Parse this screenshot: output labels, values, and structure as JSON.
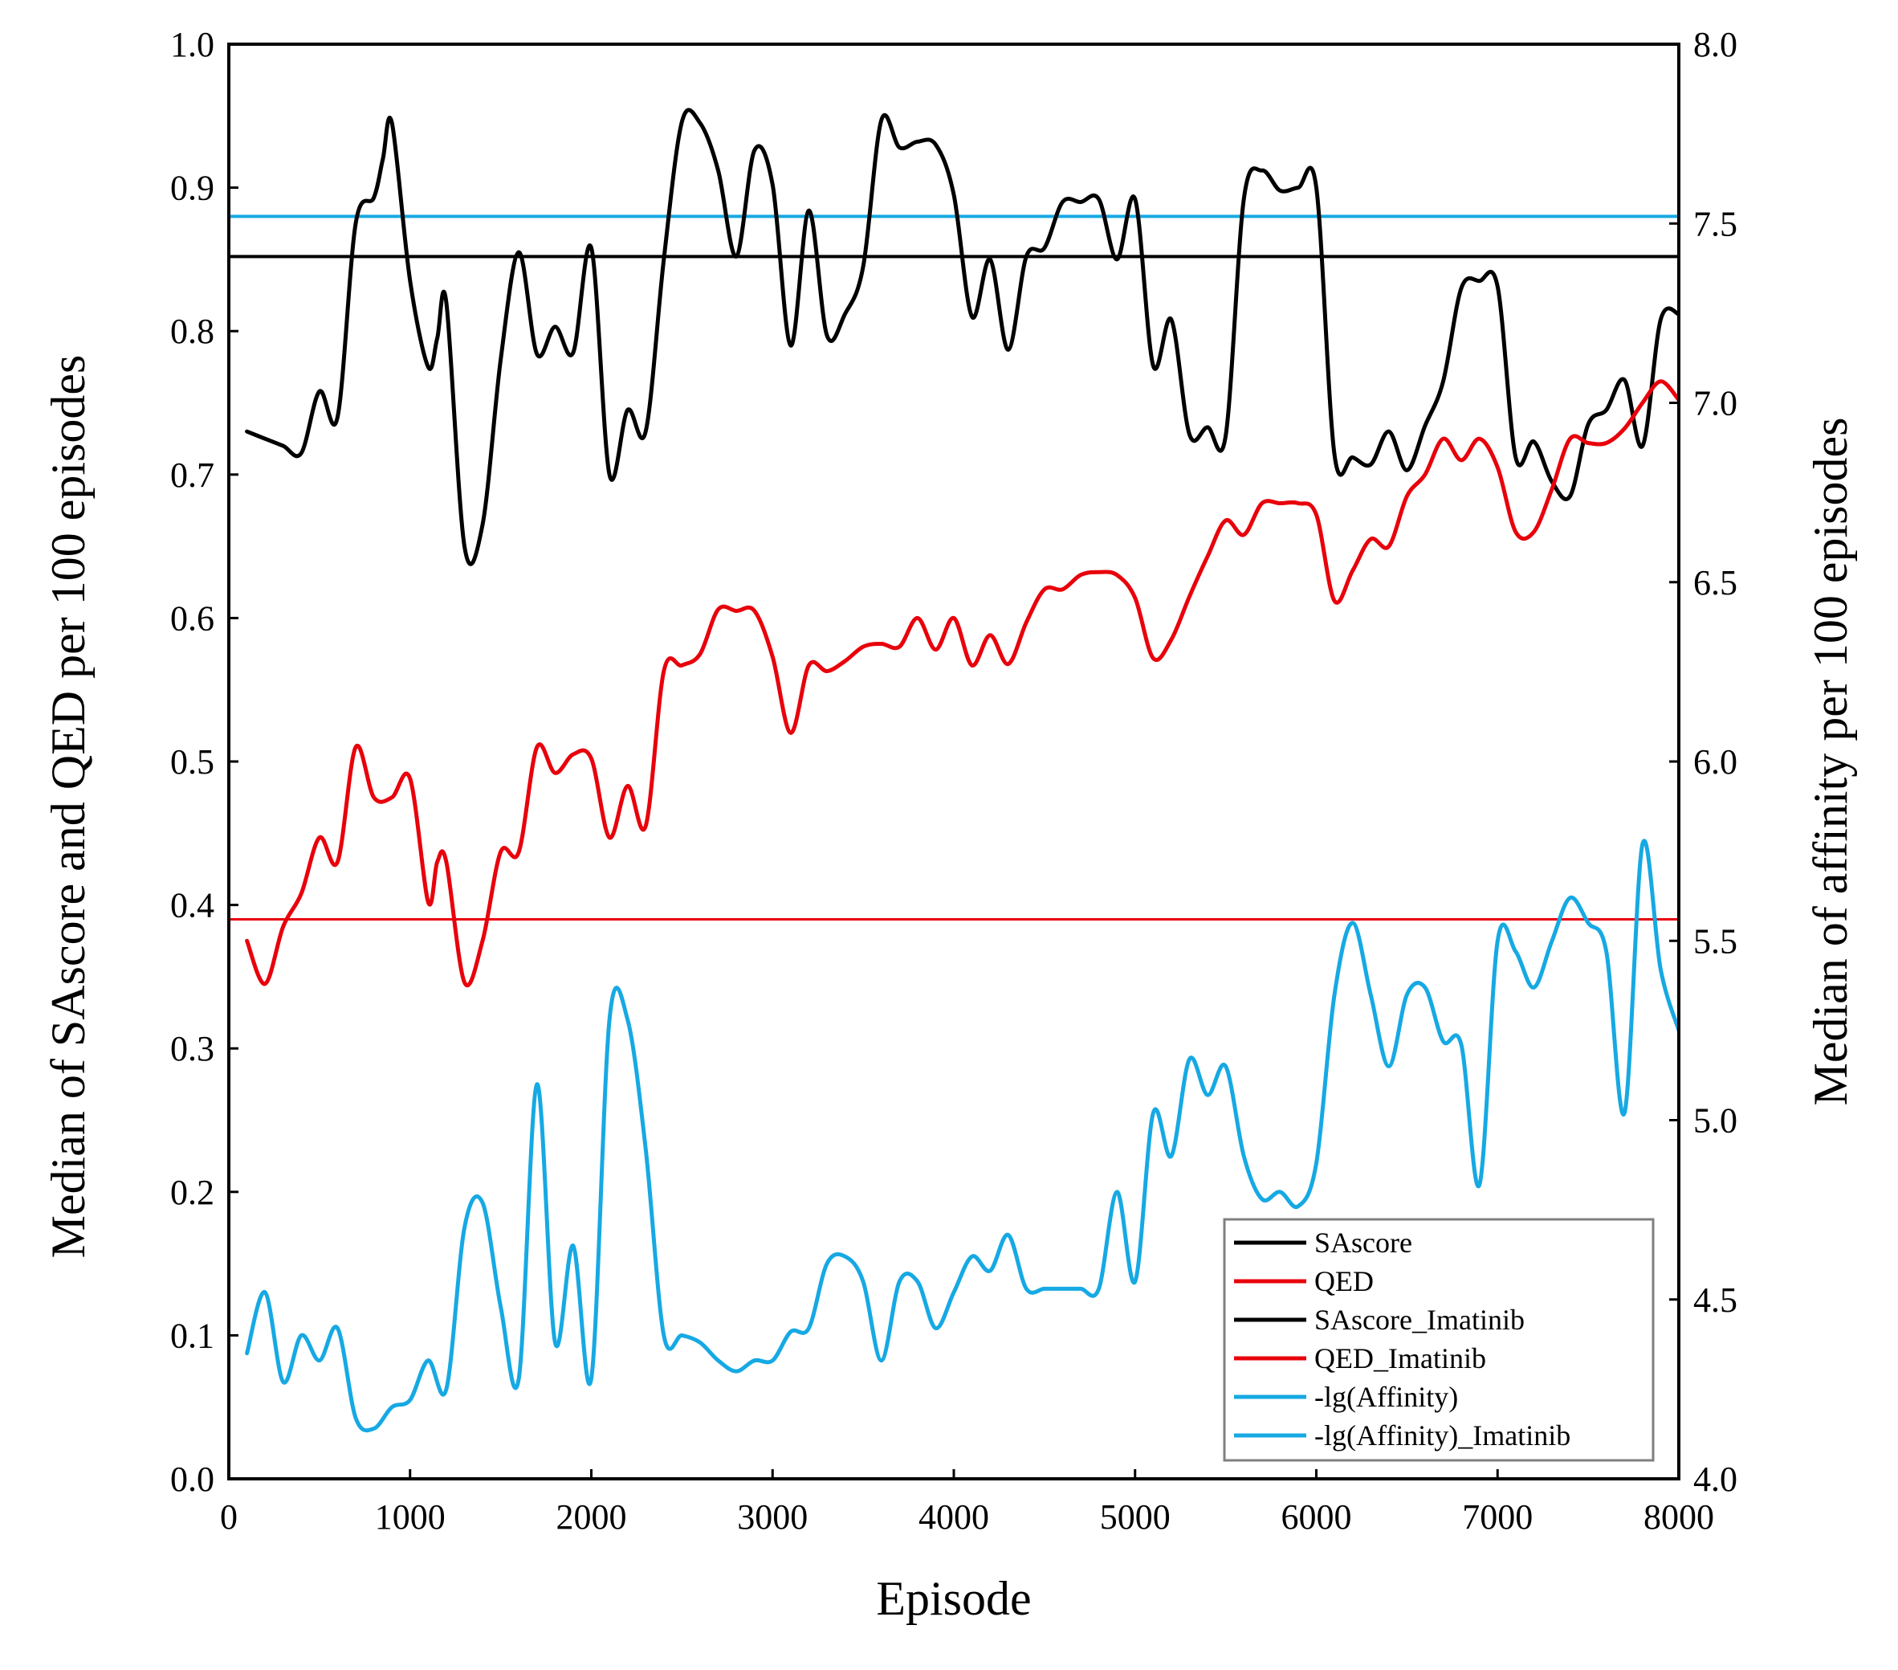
{
  "chart_data": {
    "type": "line",
    "xlabel": "Episode",
    "ylabel_left": "Median of SAscore and QED per 100 episodes",
    "ylabel_right": "Median of affinity per 100 episodes",
    "xlim": [
      0,
      8000
    ],
    "ylim_left": [
      0.0,
      1.0
    ],
    "ylim_right": [
      4.0,
      8.0
    ],
    "x_ticks": [
      "0",
      "1000",
      "2000",
      "3000",
      "4000",
      "5000",
      "6000",
      "7000",
      "8000"
    ],
    "y_left_ticks": [
      "0.0",
      "0.1",
      "0.2",
      "0.3",
      "0.4",
      "0.5",
      "0.6",
      "0.7",
      "0.8",
      "0.9",
      "1.0"
    ],
    "y_right_ticks": [
      "4.0",
      "4.5",
      "5.0",
      "5.5",
      "6.0",
      "6.5",
      "7.0",
      "7.5",
      "8.0"
    ],
    "grid": false,
    "legend_position": "bottom-right",
    "series": [
      {
        "name": "SAscore",
        "axis": "left",
        "color": "#000000",
        "kind": "curve",
        "x": [
          100,
          200,
          300,
          400,
          500,
          600,
          700,
          800,
          850,
          900,
          1000,
          1100,
          1150,
          1200,
          1300,
          1400,
          1500,
          1600,
          1700,
          1800,
          1900,
          2000,
          2100,
          2200,
          2300,
          2400,
          2500,
          2600,
          2700,
          2800,
          2900,
          3000,
          3100,
          3200,
          3300,
          3400,
          3500,
          3600,
          3700,
          3800,
          3900,
          4000,
          4100,
          4200,
          4300,
          4400,
          4500,
          4600,
          4700,
          4800,
          4900,
          5000,
          5100,
          5200,
          5300,
          5400,
          5500,
          5600,
          5700,
          5800,
          5900,
          6000,
          6100,
          6200,
          6300,
          6400,
          6500,
          6600,
          6700,
          6800,
          6900,
          7000,
          7100,
          7200,
          7300,
          7400,
          7500,
          7600,
          7700,
          7800,
          7900,
          8000
        ],
        "values": [
          0.73,
          0.725,
          0.72,
          0.715,
          0.758,
          0.74,
          0.875,
          0.893,
          0.92,
          0.945,
          0.835,
          0.775,
          0.795,
          0.82,
          0.65,
          0.665,
          0.78,
          0.855,
          0.784,
          0.803,
          0.785,
          0.858,
          0.7,
          0.745,
          0.73,
          0.85,
          0.946,
          0.945,
          0.912,
          0.852,
          0.926,
          0.902,
          0.79,
          0.884,
          0.797,
          0.812,
          0.845,
          0.947,
          0.928,
          0.932,
          0.93,
          0.895,
          0.81,
          0.85,
          0.787,
          0.852,
          0.858,
          0.89,
          0.89,
          0.892,
          0.85,
          0.892,
          0.776,
          0.808,
          0.728,
          0.733,
          0.727,
          0.892,
          0.912,
          0.898,
          0.9,
          0.9,
          0.714,
          0.712,
          0.707,
          0.73,
          0.703,
          0.734,
          0.765,
          0.83,
          0.835,
          0.831,
          0.712,
          0.723,
          0.695,
          0.685,
          0.735,
          0.745,
          0.766,
          0.72,
          0.808,
          0.812
        ]
      },
      {
        "name": "QED",
        "axis": "left",
        "color": "#e8000b",
        "kind": "curve",
        "x": [
          100,
          200,
          300,
          400,
          500,
          600,
          700,
          800,
          900,
          1000,
          1100,
          1150,
          1200,
          1300,
          1400,
          1500,
          1600,
          1700,
          1800,
          1900,
          2000,
          2100,
          2200,
          2300,
          2400,
          2500,
          2600,
          2700,
          2800,
          2900,
          3000,
          3100,
          3200,
          3300,
          3400,
          3500,
          3600,
          3700,
          3800,
          3900,
          4000,
          4100,
          4200,
          4300,
          4400,
          4500,
          4600,
          4700,
          4800,
          4900,
          5000,
          5100,
          5200,
          5300,
          5400,
          5500,
          5600,
          5700,
          5800,
          5900,
          6000,
          6100,
          6200,
          6300,
          6400,
          6500,
          6600,
          6700,
          6800,
          6900,
          7000,
          7100,
          7200,
          7300,
          7400,
          7500,
          7600,
          7700,
          7800,
          7900,
          8000
        ],
        "values": [
          0.375,
          0.345,
          0.385,
          0.408,
          0.447,
          0.43,
          0.51,
          0.475,
          0.475,
          0.488,
          0.402,
          0.43,
          0.43,
          0.346,
          0.375,
          0.437,
          0.437,
          0.51,
          0.492,
          0.505,
          0.502,
          0.447,
          0.483,
          0.455,
          0.563,
          0.567,
          0.575,
          0.606,
          0.605,
          0.605,
          0.573,
          0.52,
          0.567,
          0.563,
          0.57,
          0.58,
          0.582,
          0.58,
          0.6,
          0.578,
          0.6,
          0.567,
          0.588,
          0.568,
          0.597,
          0.62,
          0.62,
          0.63,
          0.632,
          0.63,
          0.614,
          0.572,
          0.585,
          0.615,
          0.643,
          0.668,
          0.658,
          0.68,
          0.68,
          0.68,
          0.672,
          0.612,
          0.633,
          0.655,
          0.65,
          0.685,
          0.7,
          0.725,
          0.71,
          0.725,
          0.705,
          0.66,
          0.66,
          0.69,
          0.725,
          0.722,
          0.722,
          0.732,
          0.75,
          0.765,
          0.752
        ]
      },
      {
        "name": "SAscore_Imatinib",
        "axis": "left",
        "color": "#000000",
        "kind": "hline",
        "value": 0.852
      },
      {
        "name": "QED_Imatinib",
        "axis": "left",
        "color": "#e8000b",
        "kind": "hline",
        "value": 0.39
      },
      {
        "name": "-lg(Affinity)",
        "axis": "right",
        "color": "#16a9e3",
        "kind": "curve",
        "x": [
          100,
          200,
          300,
          400,
          500,
          600,
          700,
          800,
          900,
          1000,
          1100,
          1200,
          1300,
          1400,
          1500,
          1600,
          1700,
          1800,
          1900,
          2000,
          2100,
          2200,
          2300,
          2400,
          2500,
          2600,
          2700,
          2800,
          2900,
          3000,
          3100,
          3200,
          3300,
          3400,
          3500,
          3600,
          3700,
          3800,
          3900,
          4000,
          4100,
          4200,
          4300,
          4400,
          4500,
          4600,
          4700,
          4800,
          4900,
          5000,
          5100,
          5200,
          5300,
          5400,
          5500,
          5600,
          5700,
          5800,
          5900,
          6000,
          6100,
          6200,
          6300,
          6400,
          6500,
          6600,
          6700,
          6800,
          6900,
          7000,
          7100,
          7200,
          7300,
          7400,
          7500,
          7600,
          7700,
          7800,
          7900,
          8000
        ],
        "values": [
          4.35,
          4.52,
          4.27,
          4.4,
          4.33,
          4.42,
          4.17,
          4.14,
          4.2,
          4.22,
          4.33,
          4.25,
          4.7,
          4.77,
          4.48,
          4.28,
          5.1,
          4.38,
          4.65,
          4.28,
          5.28,
          5.28,
          4.92,
          4.4,
          4.4,
          4.38,
          4.33,
          4.3,
          4.33,
          4.33,
          4.41,
          4.42,
          4.6,
          4.62,
          4.55,
          4.33,
          4.55,
          4.55,
          4.42,
          4.52,
          4.62,
          4.58,
          4.68,
          4.53,
          4.53,
          4.53,
          4.53,
          4.53,
          4.8,
          4.55,
          5.02,
          4.9,
          5.17,
          5.07,
          5.15,
          4.9,
          4.78,
          4.8,
          4.76,
          4.88,
          5.35,
          5.55,
          5.35,
          5.15,
          5.35,
          5.37,
          5.22,
          5.21,
          4.82,
          5.5,
          5.47,
          5.37,
          5.5,
          5.62,
          5.55,
          5.47,
          5.02,
          5.77,
          5.42,
          5.25
        ]
      },
      {
        "name": "-lg(Affinity)_Imatinib",
        "axis": "right",
        "color": "#16a9e3",
        "kind": "hline",
        "value": 7.52
      }
    ]
  }
}
